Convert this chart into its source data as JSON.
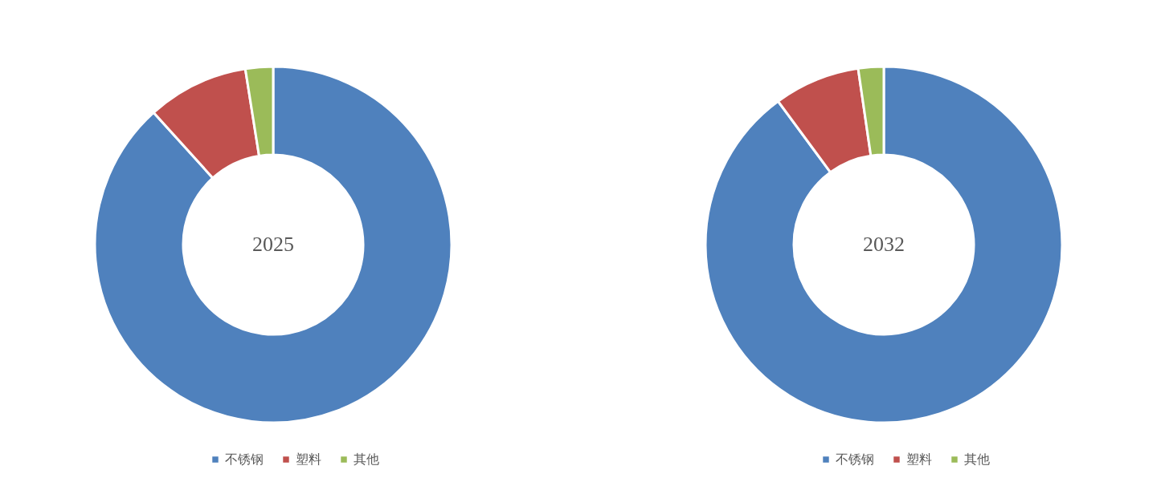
{
  "chart_data": [
    {
      "type": "donut",
      "title": "2025",
      "categories": [
        "不锈钢",
        "塑料",
        "其他"
      ],
      "values": [
        88.3,
        9.2,
        2.5
      ],
      "colors": [
        "#4f81bd",
        "#c0504d",
        "#9bbb59"
      ],
      "legend": "bottom"
    },
    {
      "type": "donut",
      "title": "2032",
      "categories": [
        "不锈钢",
        "塑料",
        "其他"
      ],
      "values": [
        89.9,
        7.8,
        2.3
      ],
      "colors": [
        "#4f81bd",
        "#c0504d",
        "#9bbb59"
      ],
      "legend": "bottom"
    }
  ]
}
